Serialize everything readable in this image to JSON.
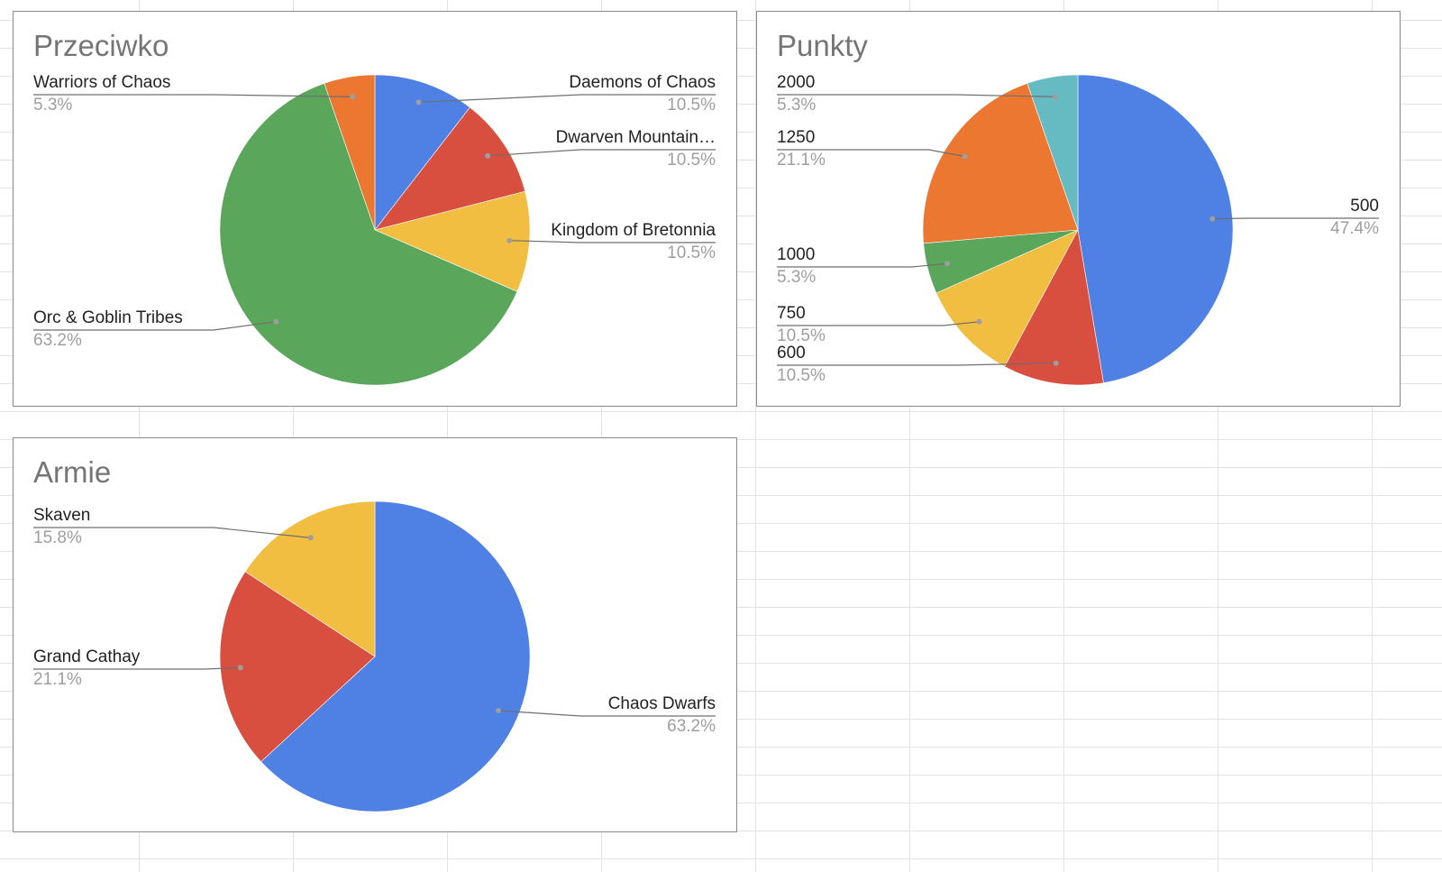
{
  "charts": [
    {
      "id": "przeciwko",
      "title": "Przeciwko",
      "chart_data": {
        "type": "pie",
        "title": "Przeciwko",
        "slices": [
          {
            "label": "Daemons of Chaos",
            "value": 10.5,
            "pct": "10.5%",
            "color": "#4f81e5"
          },
          {
            "label": "Dwarven Mountain…",
            "value": 10.5,
            "pct": "10.5%",
            "color": "#d94f3f"
          },
          {
            "label": "Kingdom of Bretonnia",
            "value": 10.5,
            "pct": "10.5%",
            "color": "#f1be42"
          },
          {
            "label": "Orc & Goblin Tribes",
            "value": 63.2,
            "pct": "63.2%",
            "color": "#5aa65a"
          },
          {
            "label": "Warriors of Chaos",
            "value": 5.3,
            "pct": "5.3%",
            "color": "#eb7730"
          }
        ]
      }
    },
    {
      "id": "punkty",
      "title": "Punkty",
      "chart_data": {
        "type": "pie",
        "title": "Punkty",
        "slices": [
          {
            "label": "500",
            "value": 47.4,
            "pct": "47.4%",
            "color": "#4f81e5"
          },
          {
            "label": "600",
            "value": 10.5,
            "pct": "10.5%",
            "color": "#d94f3f"
          },
          {
            "label": "750",
            "value": 10.5,
            "pct": "10.5%",
            "color": "#f1be42"
          },
          {
            "label": "1000",
            "value": 5.3,
            "pct": "5.3%",
            "color": "#5aa65a"
          },
          {
            "label": "1250",
            "value": 21.1,
            "pct": "21.1%",
            "color": "#eb7730"
          },
          {
            "label": "2000",
            "value": 5.3,
            "pct": "5.3%",
            "color": "#66bbc2"
          }
        ]
      }
    },
    {
      "id": "armie",
      "title": "Armie",
      "chart_data": {
        "type": "pie",
        "title": "Armie",
        "slices": [
          {
            "label": "Chaos Dwarfs",
            "value": 63.2,
            "pct": "63.2%",
            "color": "#4f81e5"
          },
          {
            "label": "Grand Cathay",
            "value": 21.1,
            "pct": "21.1%",
            "color": "#d94f3f"
          },
          {
            "label": "Skaven",
            "value": 15.8,
            "pct": "15.8%",
            "color": "#f1be42"
          }
        ]
      }
    }
  ]
}
